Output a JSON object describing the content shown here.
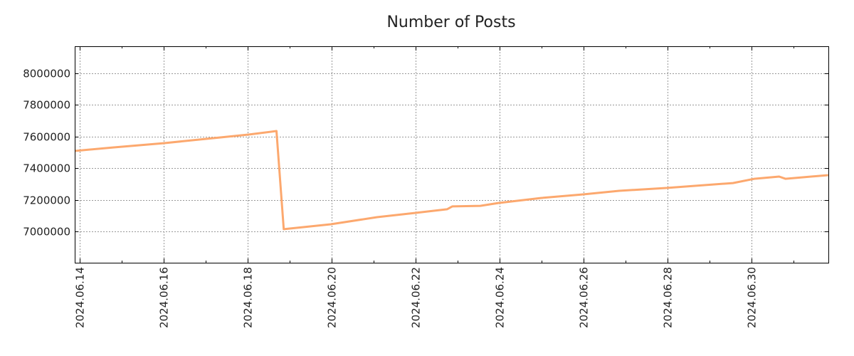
{
  "chart_data": {
    "type": "line",
    "title": "Number of Posts",
    "xlabel": "",
    "ylabel": "",
    "grid": true,
    "xlim": [
      "2024-06-13T21:10Z",
      "2024-07-01T20:00Z"
    ],
    "ylim": [
      6802000,
      8171000
    ],
    "x_ticks": [
      {
        "t": "2024-06-14T00:00Z",
        "label": "2024.06.14"
      },
      {
        "t": "2024-06-16T00:00Z",
        "label": "2024.06.16"
      },
      {
        "t": "2024-06-18T00:00Z",
        "label": "2024.06.18"
      },
      {
        "t": "2024-06-20T00:00Z",
        "label": "2024.06.20"
      },
      {
        "t": "2024-06-22T00:00Z",
        "label": "2024.06.22"
      },
      {
        "t": "2024-06-24T00:00Z",
        "label": "2024.06.24"
      },
      {
        "t": "2024-06-26T00:00Z",
        "label": "2024.06.26"
      },
      {
        "t": "2024-06-28T00:00Z",
        "label": "2024.06.28"
      },
      {
        "t": "2024-06-30T00:00Z",
        "label": "2024.06.30"
      }
    ],
    "y_ticks": [
      {
        "v": 7000000,
        "label": "7000000"
      },
      {
        "v": 7200000,
        "label": "7200000"
      },
      {
        "v": 7400000,
        "label": "7400000"
      },
      {
        "v": 7600000,
        "label": "7600000"
      },
      {
        "v": 7800000,
        "label": "7800000"
      },
      {
        "v": 8000000,
        "label": "8000000"
      }
    ],
    "series": [
      {
        "name": "Number of Posts",
        "color": "#fca86e",
        "x": [
          "2024-06-13T21:10Z",
          "2024-06-14T19:00Z",
          "2024-06-16T00:00Z",
          "2024-06-17T09:00Z",
          "2024-06-18T01:00Z",
          "2024-06-18T16:30Z",
          "2024-06-18T20:40Z",
          "2024-06-19T23:30Z",
          "2024-06-21T02:00Z",
          "2024-06-21T23:30Z",
          "2024-06-22T18:00Z",
          "2024-06-22T21:00Z",
          "2024-06-23T13:00Z",
          "2024-06-23T23:20Z",
          "2024-06-25T00:00Z",
          "2024-06-25T23:20Z",
          "2024-06-26T20:24Z",
          "2024-06-27T23:20Z",
          "2024-06-29T13:26Z",
          "2024-06-30T01:40Z",
          "2024-06-30T15:50Z",
          "2024-06-30T19:26Z",
          "2024-07-01T19:55Z"
        ],
        "values": [
          7509000,
          7531000,
          7558000,
          7595000,
          7613000,
          7635000,
          7014000,
          7045000,
          7090000,
          7117000,
          7140000,
          7158000,
          7162000,
          7180000,
          7212000,
          7234000,
          7257000,
          7275000,
          7306000,
          7333000,
          7347000,
          7333000,
          7356000
        ]
      }
    ]
  }
}
